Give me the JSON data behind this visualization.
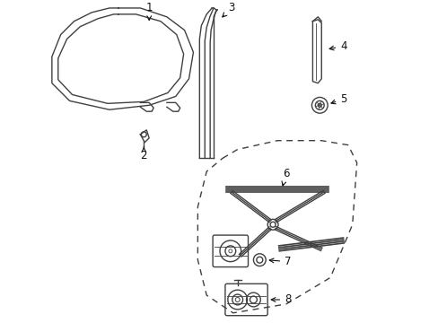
{
  "bg_color": "#ffffff",
  "line_color": "#404040",
  "label_color": "#111111",
  "fig_width": 4.89,
  "fig_height": 3.6,
  "dpi": 100
}
